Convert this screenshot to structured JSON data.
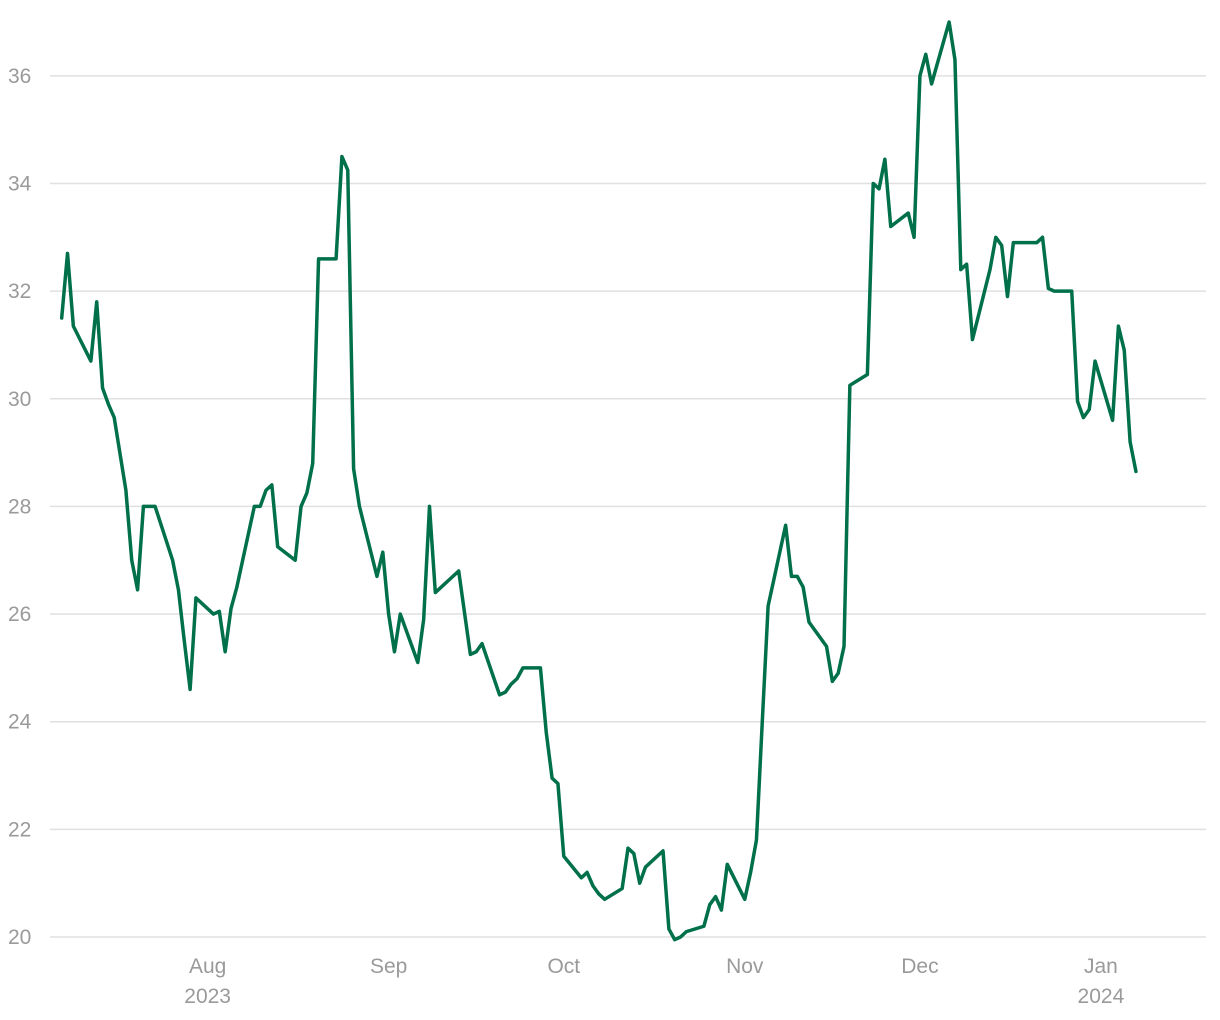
{
  "chart_data": {
    "type": "line",
    "title": "",
    "xlabel": "",
    "ylabel": "",
    "ylim": [
      20,
      37
    ],
    "xlim": [
      "2023-07-05",
      "2024-01-19"
    ],
    "grid": true,
    "legend": "none",
    "y_ticks": [
      {
        "value": 20,
        "label": "20"
      },
      {
        "value": 22,
        "label": "22"
      },
      {
        "value": 24,
        "label": "24"
      },
      {
        "value": 26,
        "label": "26"
      },
      {
        "value": 28,
        "label": "28"
      },
      {
        "value": 30,
        "label": "30"
      },
      {
        "value": 32,
        "label": "32"
      },
      {
        "value": 34,
        "label": "34"
      },
      {
        "value": 36,
        "label": "36"
      }
    ],
    "x_ticks": [
      {
        "date": "2023-08-01",
        "label": "Aug",
        "year": "2023"
      },
      {
        "date": "2023-09-01",
        "label": "Sep",
        "year": ""
      },
      {
        "date": "2023-10-01",
        "label": "Oct",
        "year": ""
      },
      {
        "date": "2023-11-01",
        "label": "Nov",
        "year": ""
      },
      {
        "date": "2023-12-01",
        "label": "Dec",
        "year": ""
      },
      {
        "date": "2024-01-01",
        "label": "Jan",
        "year": "2024"
      }
    ],
    "series": [
      {
        "color": "#00704a",
        "points": [
          [
            "2023-07-07",
            31.5
          ],
          [
            "2023-07-08",
            32.7
          ],
          [
            "2023-07-09",
            31.35
          ],
          [
            "2023-07-12",
            30.7
          ],
          [
            "2023-07-13",
            31.8
          ],
          [
            "2023-07-14",
            30.2
          ],
          [
            "2023-07-15",
            29.9
          ],
          [
            "2023-07-16",
            29.65
          ],
          [
            "2023-07-18",
            28.3
          ],
          [
            "2023-07-19",
            27.0
          ],
          [
            "2023-07-20",
            26.45
          ],
          [
            "2023-07-21",
            28.0
          ],
          [
            "2023-07-23",
            28.0
          ],
          [
            "2023-07-26",
            27.0
          ],
          [
            "2023-07-27",
            26.45
          ],
          [
            "2023-07-28",
            25.5
          ],
          [
            "2023-07-29",
            24.6
          ],
          [
            "2023-07-30",
            26.3
          ],
          [
            "2023-08-02",
            26.0
          ],
          [
            "2023-08-03",
            26.05
          ],
          [
            "2023-08-04",
            25.3
          ],
          [
            "2023-08-05",
            26.1
          ],
          [
            "2023-08-06",
            26.5
          ],
          [
            "2023-08-09",
            28.0
          ],
          [
            "2023-08-10",
            28.0
          ],
          [
            "2023-08-11",
            28.3
          ],
          [
            "2023-08-12",
            28.4
          ],
          [
            "2023-08-13",
            27.25
          ],
          [
            "2023-08-16",
            27.0
          ],
          [
            "2023-08-17",
            28.0
          ],
          [
            "2023-08-18",
            28.25
          ],
          [
            "2023-08-19",
            28.8
          ],
          [
            "2023-08-20",
            32.6
          ],
          [
            "2023-08-23",
            32.6
          ],
          [
            "2023-08-24",
            34.5
          ],
          [
            "2023-08-25",
            34.25
          ],
          [
            "2023-08-26",
            28.7
          ],
          [
            "2023-08-27",
            28.0
          ],
          [
            "2023-08-30",
            26.7
          ],
          [
            "2023-08-31",
            27.15
          ],
          [
            "2023-09-01",
            26.0
          ],
          [
            "2023-09-02",
            25.3
          ],
          [
            "2023-09-03",
            26.0
          ],
          [
            "2023-09-06",
            25.1
          ],
          [
            "2023-09-07",
            25.9
          ],
          [
            "2023-09-08",
            28.0
          ],
          [
            "2023-09-09",
            26.4
          ],
          [
            "2023-09-13",
            26.8
          ],
          [
            "2023-09-15",
            25.25
          ],
          [
            "2023-09-16",
            25.3
          ],
          [
            "2023-09-17",
            25.45
          ],
          [
            "2023-09-20",
            24.5
          ],
          [
            "2023-09-21",
            24.55
          ],
          [
            "2023-09-22",
            24.7
          ],
          [
            "2023-09-23",
            24.8
          ],
          [
            "2023-09-24",
            25.0
          ],
          [
            "2023-09-27",
            25.0
          ],
          [
            "2023-09-28",
            23.8
          ],
          [
            "2023-09-29",
            22.95
          ],
          [
            "2023-09-30",
            22.85
          ],
          [
            "2023-10-01",
            21.5
          ],
          [
            "2023-10-04",
            21.1
          ],
          [
            "2023-10-05",
            21.2
          ],
          [
            "2023-10-06",
            20.95
          ],
          [
            "2023-10-07",
            20.8
          ],
          [
            "2023-10-08",
            20.7
          ],
          [
            "2023-10-11",
            20.9
          ],
          [
            "2023-10-12",
            21.65
          ],
          [
            "2023-10-13",
            21.55
          ],
          [
            "2023-10-14",
            21.0
          ],
          [
            "2023-10-15",
            21.3
          ],
          [
            "2023-10-18",
            21.6
          ],
          [
            "2023-10-19",
            20.15
          ],
          [
            "2023-10-20",
            19.95
          ],
          [
            "2023-10-21",
            20.0
          ],
          [
            "2023-10-22",
            20.1
          ],
          [
            "2023-10-25",
            20.2
          ],
          [
            "2023-10-26",
            20.6
          ],
          [
            "2023-10-27",
            20.75
          ],
          [
            "2023-10-28",
            20.5
          ],
          [
            "2023-10-29",
            21.35
          ],
          [
            "2023-11-01",
            20.7
          ],
          [
            "2023-11-02",
            21.2
          ],
          [
            "2023-11-03",
            21.8
          ],
          [
            "2023-11-04",
            24.0
          ],
          [
            "2023-11-05",
            26.15
          ],
          [
            "2023-11-08",
            27.65
          ],
          [
            "2023-11-09",
            26.7
          ],
          [
            "2023-11-10",
            26.7
          ],
          [
            "2023-11-11",
            26.5
          ],
          [
            "2023-11-12",
            25.85
          ],
          [
            "2023-11-15",
            25.4
          ],
          [
            "2023-11-16",
            24.75
          ],
          [
            "2023-11-17",
            24.9
          ],
          [
            "2023-11-18",
            25.4
          ],
          [
            "2023-11-19",
            30.25
          ],
          [
            "2023-11-22",
            30.45
          ],
          [
            "2023-11-23",
            34.0
          ],
          [
            "2023-11-24",
            33.9
          ],
          [
            "2023-11-25",
            34.45
          ],
          [
            "2023-11-26",
            33.2
          ],
          [
            "2023-11-29",
            33.45
          ],
          [
            "2023-11-30",
            33.0
          ],
          [
            "2023-12-01",
            36.0
          ],
          [
            "2023-12-02",
            36.4
          ],
          [
            "2023-12-03",
            35.85
          ],
          [
            "2023-12-06",
            37.0
          ],
          [
            "2023-12-07",
            36.3
          ],
          [
            "2023-12-08",
            32.4
          ],
          [
            "2023-12-09",
            32.5
          ],
          [
            "2023-12-10",
            31.1
          ],
          [
            "2023-12-13",
            32.4
          ],
          [
            "2023-12-14",
            33.0
          ],
          [
            "2023-12-15",
            32.85
          ],
          [
            "2023-12-16",
            31.9
          ],
          [
            "2023-12-17",
            32.9
          ],
          [
            "2023-12-20",
            32.9
          ],
          [
            "2023-12-21",
            32.9
          ],
          [
            "2023-12-22",
            33.0
          ],
          [
            "2023-12-23",
            32.05
          ],
          [
            "2023-12-24",
            32.0
          ],
          [
            "2023-12-27",
            32.0
          ],
          [
            "2023-12-28",
            29.95
          ],
          [
            "2023-12-29",
            29.65
          ],
          [
            "2023-12-30",
            29.8
          ],
          [
            "2023-12-31",
            30.7
          ],
          [
            "2024-01-03",
            29.6
          ],
          [
            "2024-01-04",
            31.35
          ],
          [
            "2024-01-05",
            30.9
          ],
          [
            "2024-01-06",
            29.2
          ],
          [
            "2024-01-07",
            28.65
          ]
        ]
      }
    ]
  }
}
